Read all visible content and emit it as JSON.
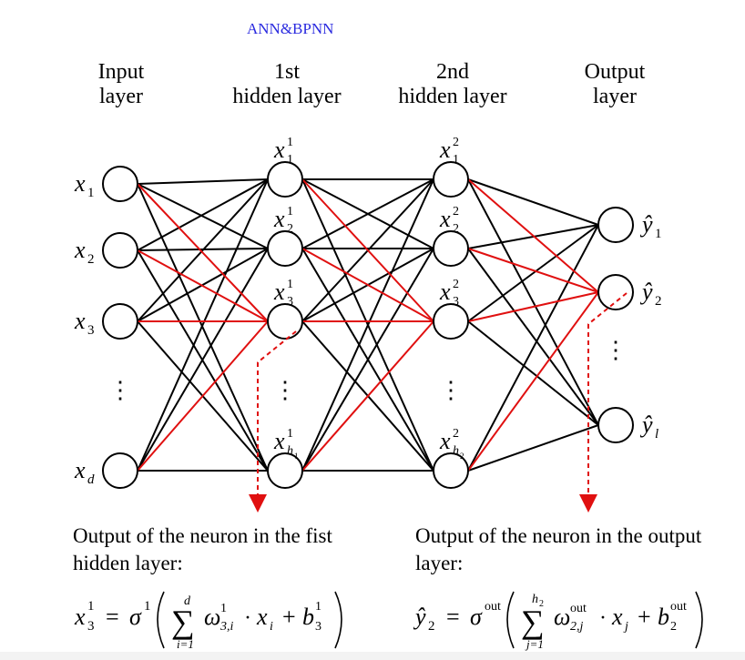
{
  "title": "ANN&BPNN",
  "layers": [
    {
      "line1": "Input",
      "line2": "layer"
    },
    {
      "line1": "1st",
      "line2": "hidden layer"
    },
    {
      "line1": "2nd",
      "line2": "hidden layer"
    },
    {
      "line1": "Output",
      "line2": "layer"
    }
  ],
  "nodes": {
    "input": [
      {
        "base": "x",
        "sub": "1",
        "sup": ""
      },
      {
        "base": "x",
        "sub": "2",
        "sup": ""
      },
      {
        "base": "x",
        "sub": "3",
        "sup": ""
      },
      {
        "base": "x",
        "sub": "d",
        "sup": ""
      }
    ],
    "hidden1": [
      {
        "base": "x",
        "sub": "1",
        "sup": "1"
      },
      {
        "base": "x",
        "sub": "2",
        "sup": "1"
      },
      {
        "base": "x",
        "sub": "3",
        "sup": "1"
      },
      {
        "base": "x",
        "sub": "h",
        "subsub": "1",
        "sup": "1"
      }
    ],
    "hidden2": [
      {
        "base": "x",
        "sub": "1",
        "sup": "2"
      },
      {
        "base": "x",
        "sub": "2",
        "sup": "2"
      },
      {
        "base": "x",
        "sub": "3",
        "sup": "2"
      },
      {
        "base": "x",
        "sub": "h",
        "subsub": "2",
        "sup": "2"
      }
    ],
    "output": [
      {
        "base": "ŷ",
        "sub": "1"
      },
      {
        "base": "ŷ",
        "sub": "2"
      },
      {
        "base": "ŷ",
        "sub": "l"
      }
    ]
  },
  "ellipsis": "⋮",
  "captions": {
    "left": [
      "Output of the neuron in the fist",
      "hidden layer:"
    ],
    "right": [
      "Output of the neuron in the output",
      "layer:"
    ]
  },
  "formula_left": {
    "lhs_base": "x",
    "lhs_sub": "3",
    "lhs_sup": "1",
    "sigma_sup": "1",
    "sum_top": "d",
    "sum_bottom": "i=1",
    "w_sub": "3,i",
    "w_sup": "1",
    "x_sub": "i",
    "b_sub": "3",
    "b_sup": "1"
  },
  "formula_right": {
    "lhs_base": "ŷ",
    "lhs_sub": "2",
    "sigma_sup": "out",
    "sum_top": "h",
    "sum_top_sub": "2",
    "sum_bottom": "j=1",
    "w_sub": "2,j",
    "w_sup": "out",
    "x_sub": "j",
    "b_sub": "2",
    "b_sup": "out"
  },
  "colors": {
    "black_edge": "#000000",
    "red_edge": "#e01010",
    "title": "#2a2adf"
  }
}
